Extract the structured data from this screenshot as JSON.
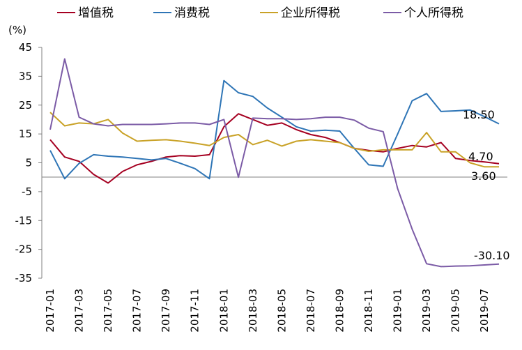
{
  "chart_data": {
    "type": "line",
    "ylabel": "(%)",
    "ylim": [
      -35,
      45
    ],
    "yticks": [
      45,
      35,
      25,
      15,
      5,
      -5,
      -15,
      -25,
      -35
    ],
    "categories": [
      "2017-01",
      "2017-02",
      "2017-03",
      "2017-04",
      "2017-05",
      "2017-06",
      "2017-07",
      "2017-08",
      "2017-09",
      "2017-10",
      "2017-11",
      "2017-12",
      "2018-01",
      "2018-02",
      "2018-03",
      "2018-04",
      "2018-05",
      "2018-06",
      "2018-07",
      "2018-08",
      "2018-09",
      "2018-10",
      "2018-11",
      "2018-12",
      "2019-01",
      "2019-02",
      "2019-03",
      "2019-04",
      "2019-05",
      "2019-06",
      "2019-07",
      "2019-08"
    ],
    "xtick_labels": [
      "2017-01",
      "2017-03",
      "2017-05",
      "2017-07",
      "2017-09",
      "2017-11",
      "2018-01",
      "2018-03",
      "2018-05",
      "2018-07",
      "2018-09",
      "2018-11",
      "2019-01",
      "2019-03",
      "2019-05",
      "2019-07"
    ],
    "grid": false,
    "legend_position": "top",
    "series": [
      {
        "name": "增值税",
        "color": "#A50021",
        "values": [
          13.0,
          7.0,
          5.5,
          1.0,
          -2.0,
          2.0,
          4.3,
          5.5,
          7.0,
          7.5,
          7.3,
          7.8,
          17.5,
          22.0,
          20.0,
          18.0,
          18.8,
          16.5,
          14.8,
          13.8,
          12.0,
          10.0,
          9.3,
          8.8,
          10.0,
          11.0,
          10.5,
          12.0,
          6.5,
          5.8,
          5.3,
          4.7
        ],
        "end_label": "4.70"
      },
      {
        "name": "消费税",
        "color": "#2E75B6",
        "values": [
          9.3,
          -0.5,
          4.8,
          7.8,
          7.3,
          7.0,
          6.5,
          6.0,
          6.5,
          4.8,
          3.0,
          -0.5,
          33.5,
          29.3,
          28.0,
          24.0,
          20.8,
          17.5,
          16.0,
          16.3,
          16.0,
          10.0,
          4.3,
          3.8,
          15.0,
          26.5,
          29.0,
          22.8,
          23.0,
          23.3,
          21.0,
          18.5
        ],
        "end_label": "18.50"
      },
      {
        "name": "企业所得税",
        "color": "#C9A227",
        "values": [
          22.5,
          17.8,
          18.8,
          18.5,
          20.0,
          15.3,
          12.5,
          12.8,
          13.0,
          12.5,
          11.8,
          11.0,
          13.8,
          14.8,
          11.3,
          12.8,
          10.8,
          12.5,
          13.0,
          12.5,
          12.0,
          10.0,
          9.0,
          9.5,
          9.5,
          9.5,
          15.5,
          8.8,
          8.8,
          5.0,
          3.6,
          3.6
        ],
        "end_label": "3.60"
      },
      {
        "name": "个人所得税",
        "color": "#7B5BA6",
        "values": [
          16.5,
          41.0,
          20.8,
          18.5,
          17.8,
          18.3,
          18.3,
          18.3,
          18.5,
          18.8,
          18.8,
          18.3,
          20.0,
          0.0,
          20.5,
          20.3,
          20.3,
          20.0,
          20.3,
          20.8,
          20.8,
          19.8,
          17.0,
          15.8,
          -4.0,
          -18.0,
          -30.0,
          -31.0,
          -30.8,
          -30.7,
          -30.4,
          -30.1
        ],
        "end_label": "-30.10"
      }
    ]
  }
}
